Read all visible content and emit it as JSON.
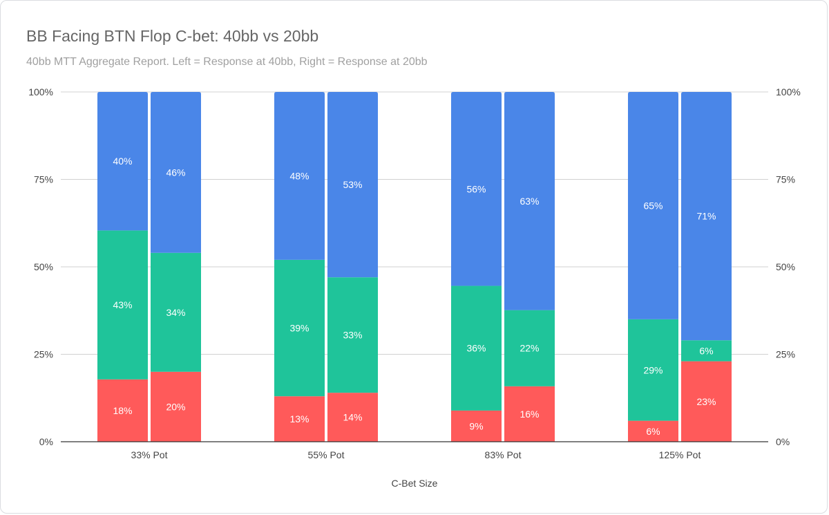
{
  "chart_data": {
    "type": "bar",
    "stacked": true,
    "title": "BB Facing BTN Flop C-bet: 40bb vs 20bb",
    "subtitle": "40bb MTT Aggregate Report. Left = Response at 40bb, Right = Response at 20bb",
    "xlabel": "C-Bet Size",
    "ylabel": "",
    "ylim": [
      0,
      100
    ],
    "y_ticks": [
      "0%",
      "25%",
      "50%",
      "75%",
      "100%"
    ],
    "y_ticks_right": [
      "0%",
      "25%",
      "50%",
      "75%",
      "100%"
    ],
    "grid": true,
    "legend": "none",
    "categories": [
      "33% Pot",
      "55% Pot",
      "83% Pot",
      "125% Pot"
    ],
    "bars_per_category": [
      "40bb",
      "20bb"
    ],
    "series_colors": [
      "#ff5a5a",
      "#1fc49a",
      "#4a86e8"
    ],
    "stacks": [
      {
        "category": "33% Pot",
        "bar": "40bb",
        "values": [
          18,
          43,
          40
        ],
        "labels": [
          "18%",
          "43%",
          "40%"
        ]
      },
      {
        "category": "33% Pot",
        "bar": "20bb",
        "values": [
          20,
          34,
          46
        ],
        "labels": [
          "20%",
          "34%",
          "46%"
        ]
      },
      {
        "category": "55% Pot",
        "bar": "40bb",
        "values": [
          13,
          39,
          48
        ],
        "labels": [
          "13%",
          "39%",
          "48%"
        ]
      },
      {
        "category": "55% Pot",
        "bar": "20bb",
        "values": [
          14,
          33,
          53
        ],
        "labels": [
          "14%",
          "33%",
          "53%"
        ]
      },
      {
        "category": "83% Pot",
        "bar": "40bb",
        "values": [
          9,
          36,
          56
        ],
        "labels": [
          "9%",
          "36%",
          "56%"
        ]
      },
      {
        "category": "83% Pot",
        "bar": "20bb",
        "values": [
          16,
          22,
          63
        ],
        "labels": [
          "16%",
          "22%",
          "63%"
        ]
      },
      {
        "category": "125% Pot",
        "bar": "40bb",
        "values": [
          6,
          29,
          65
        ],
        "labels": [
          "6%",
          "29%",
          "65%"
        ]
      },
      {
        "category": "125% Pot",
        "bar": "20bb",
        "values": [
          23,
          6,
          71
        ],
        "labels": [
          "23%",
          "6%",
          "71%"
        ]
      }
    ]
  }
}
